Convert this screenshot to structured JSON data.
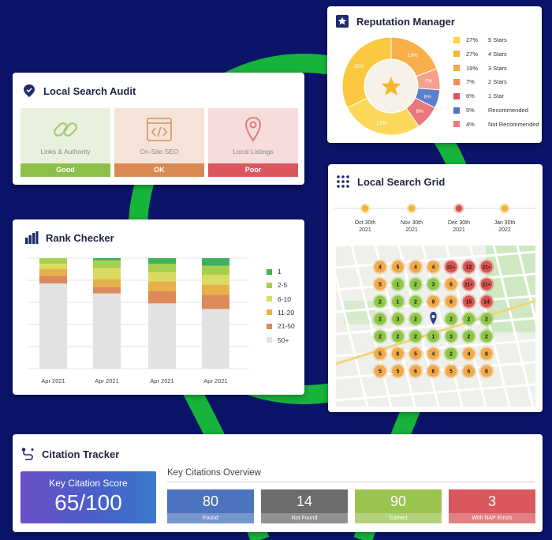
{
  "audit": {
    "title": "Local Search Audit",
    "items": [
      {
        "label": "Links & Authority",
        "status": "Good",
        "bg": "#e9f1dc",
        "bar": "#8dc04a",
        "icon": "link-icon"
      },
      {
        "label": "On-Site SEO",
        "status": "OK",
        "bg": "#f6e3d8",
        "bar": "#d88a52",
        "icon": "code-icon"
      },
      {
        "label": "Local Listings",
        "status": "Poor",
        "bg": "#f7dcdc",
        "bar": "#d9575d",
        "icon": "map-pin-icon"
      }
    ]
  },
  "reputation": {
    "title": "Reputation Manager",
    "donut_labels": [
      "32%",
      "19%",
      "7%",
      "6%",
      "8%",
      "27%"
    ],
    "legend": [
      {
        "pct": "27%",
        "label": "5 Stars",
        "color": "#fcd33a"
      },
      {
        "pct": "27%",
        "label": "4 Stars",
        "color": "#f8b733"
      },
      {
        "pct": "19%",
        "label": "3 Stars",
        "color": "#f7a645"
      },
      {
        "pct": "7%",
        "label": "2 Stars",
        "color": "#f58c55"
      },
      {
        "pct": "6%",
        "label": "1 Star",
        "color": "#e0525b"
      },
      {
        "pct": "5%",
        "label": "Recommended",
        "color": "#4f73c4"
      },
      {
        "pct": "4%",
        "label": "Not Recommended",
        "color": "#f27a7f"
      }
    ]
  },
  "rank": {
    "title": "Rank Checker",
    "legend": [
      {
        "label": "1",
        "color": "#3fb15a"
      },
      {
        "label": "2-5",
        "color": "#a6cf4f"
      },
      {
        "label": "6-10",
        "color": "#d9dc60"
      },
      {
        "label": "11-20",
        "color": "#e8b04b"
      },
      {
        "label": "21-50",
        "color": "#dc8a5a"
      },
      {
        "label": "50+",
        "color": "#e2e2e2"
      }
    ]
  },
  "chart_data": {
    "type": "bar",
    "categories": [
      "Apr 2021",
      "Apr 2021",
      "Apr 2021",
      "Apr 2021"
    ],
    "series": [
      {
        "name": "1",
        "values": [
          0,
          2,
          5,
          7
        ]
      },
      {
        "name": "2-5",
        "values": [
          5,
          7,
          8,
          8
        ]
      },
      {
        "name": "6-10",
        "values": [
          5,
          10,
          8,
          9
        ]
      },
      {
        "name": "11-20",
        "values": [
          6,
          7,
          9,
          9
        ]
      },
      {
        "name": "21-50",
        "values": [
          7,
          6,
          11,
          13
        ]
      },
      {
        "name": "50+",
        "values": [
          77,
          68,
          59,
          54
        ]
      }
    ],
    "title": "Rank Checker",
    "stacked": true,
    "ylim": [
      0,
      100
    ],
    "grid": true,
    "legend": "right"
  },
  "grid": {
    "title": "Local Search Grid",
    "timeline": [
      {
        "month": "Oct 30th",
        "year": "2021",
        "color": "#f0b43c"
      },
      {
        "month": "Nov 30th",
        "year": "2021",
        "color": "#f0b43c"
      },
      {
        "month": "Dec 30th",
        "year": "2021",
        "color": "#d9534f"
      },
      {
        "month": "Jan 30th",
        "year": "2022",
        "color": "#f0b43c"
      }
    ],
    "pins": [
      [
        "4",
        "5",
        "4",
        "4",
        "21+",
        "12",
        "21+"
      ],
      [
        "5",
        "1",
        "2",
        "3",
        "6",
        "21+",
        "21+"
      ],
      [
        "2",
        "1",
        "2",
        "9",
        "8",
        "15",
        "14"
      ],
      [
        "2",
        "3",
        "2",
        "",
        "2",
        "2",
        "2"
      ],
      [
        "2",
        "2",
        "2",
        "1",
        "3",
        "2",
        "2"
      ],
      [
        "5",
        "6",
        "5",
        "4",
        "2",
        "4",
        "6"
      ],
      [
        "5",
        "5",
        "6",
        "6",
        "5",
        "6",
        "6"
      ]
    ]
  },
  "citation": {
    "title": "Citation Tracker",
    "score_label": "Key Citation Score",
    "score_value": "65/100",
    "overview_label": "Key Citations Overview",
    "boxes": [
      {
        "value": "80",
        "label": "Found",
        "color": "#4b73be"
      },
      {
        "value": "14",
        "label": "Not Found",
        "color": "#6c6c6c"
      },
      {
        "value": "90",
        "label": "Correct",
        "color": "#9bc350"
      },
      {
        "value": "3",
        "label": "With NAP Errors",
        "color": "#d9575d"
      }
    ]
  },
  "colors": {
    "background": "#0b1469",
    "ring": "#18b43c"
  }
}
